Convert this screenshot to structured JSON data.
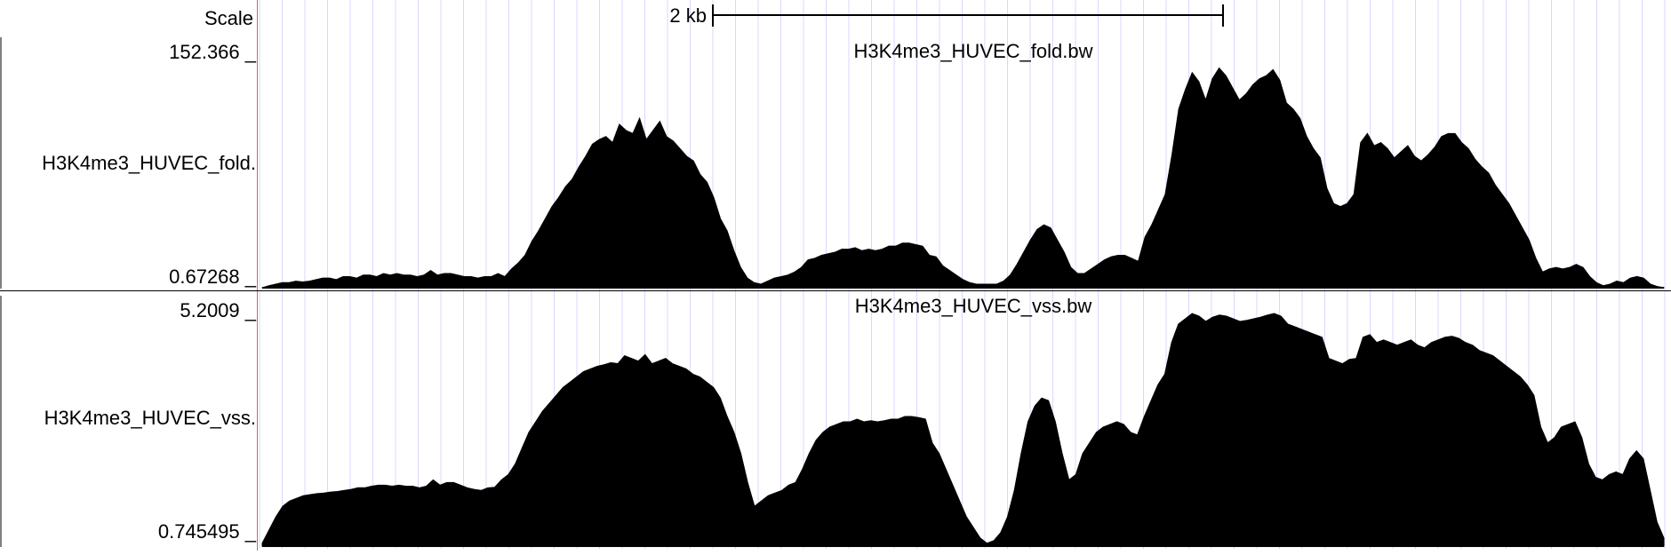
{
  "scale": {
    "label": "Scale",
    "text": "2 kb"
  },
  "colors": {
    "signal": "#000000",
    "gridline": "#d8d8ff",
    "left_border": "#e06060",
    "background": "#ffffff"
  },
  "chart_data": [
    {
      "type": "area",
      "title": "H3K4me3_HUVEC_fold.bw",
      "track_label": "H3K4me3_HUVEC_fold.",
      "ymax_label": "152.366 _",
      "ymin_label": "0.67268 _",
      "ylim": [
        0.67268,
        152.366
      ],
      "ylabel": "",
      "xlabel": "",
      "grid": true,
      "values": [
        0.7,
        2,
        3,
        4,
        4,
        5,
        4.5,
        5,
        6,
        7,
        7,
        6,
        8,
        8,
        7,
        9,
        9,
        8,
        10,
        9,
        10,
        9,
        9,
        8,
        9,
        12,
        9,
        10,
        10,
        9,
        8,
        8,
        7,
        8,
        8,
        10,
        8,
        13,
        17,
        22,
        31,
        38,
        46,
        54,
        60,
        67,
        72,
        80,
        87,
        95,
        98,
        100,
        96,
        108,
        104,
        102,
        112,
        98,
        104,
        110,
        100,
        97,
        92,
        87,
        84,
        75,
        70,
        60,
        46,
        38,
        25,
        14,
        7,
        4,
        3,
        5,
        7,
        8,
        9,
        11,
        14,
        19,
        20,
        22,
        23,
        24,
        26,
        26,
        27,
        25,
        26,
        25,
        26,
        28,
        28,
        30,
        30,
        29,
        28,
        22,
        21,
        15,
        12,
        9,
        6,
        4,
        3,
        3,
        3,
        3,
        5,
        9,
        16,
        24,
        32,
        39,
        42,
        40,
        32,
        24,
        14,
        10,
        10,
        13,
        16,
        19,
        21,
        22,
        22,
        20,
        18,
        34,
        42,
        52,
        62,
        88,
        118,
        131,
        142,
        136,
        124,
        138,
        145,
        140,
        132,
        124,
        128,
        134,
        138,
        140,
        144,
        137,
        122,
        118,
        112,
        100,
        92,
        86,
        66,
        56,
        54,
        56,
        62,
        96,
        102,
        94,
        96,
        92,
        86,
        90,
        94,
        87,
        84,
        88,
        93,
        100,
        102,
        102,
        96,
        92,
        85,
        80,
        76,
        68,
        62,
        56,
        48,
        40,
        32,
        20,
        11,
        13,
        14,
        13,
        14,
        16,
        14,
        8,
        4,
        2,
        3,
        5,
        4,
        7,
        8,
        7,
        3,
        1.5,
        0.7
      ]
    },
    {
      "type": "area",
      "title": "H3K4me3_HUVEC_vss.bw",
      "track_label": "H3K4me3_HUVEC_vss.",
      "ymax_label": "5.2009 _",
      "ymin_label": "0.745495 _",
      "ylim": [
        0.745495,
        5.2009
      ],
      "ylabel": "",
      "xlabel": "",
      "grid": true,
      "values": [
        0.8,
        1.05,
        1.3,
        1.5,
        1.6,
        1.65,
        1.7,
        1.72,
        1.74,
        1.75,
        1.77,
        1.78,
        1.8,
        1.82,
        1.85,
        1.85,
        1.88,
        1.9,
        1.9,
        1.88,
        1.9,
        1.88,
        1.88,
        1.85,
        1.88,
        2.0,
        1.9,
        1.95,
        1.95,
        1.9,
        1.85,
        1.82,
        1.8,
        1.85,
        1.86,
        2.0,
        2.1,
        2.3,
        2.6,
        2.9,
        3.1,
        3.3,
        3.45,
        3.6,
        3.75,
        3.85,
        3.95,
        4.05,
        4.1,
        4.15,
        4.18,
        4.22,
        4.2,
        4.35,
        4.3,
        4.25,
        4.37,
        4.2,
        4.25,
        4.3,
        4.2,
        4.15,
        4.1,
        4.0,
        3.95,
        3.85,
        3.75,
        3.55,
        3.2,
        2.9,
        2.5,
        1.95,
        1.5,
        1.6,
        1.7,
        1.75,
        1.8,
        1.9,
        1.95,
        2.2,
        2.5,
        2.75,
        2.9,
        3.0,
        3.05,
        3.1,
        3.1,
        3.15,
        3.1,
        3.12,
        3.1,
        3.12,
        3.15,
        3.15,
        3.2,
        3.2,
        3.18,
        3.15,
        2.7,
        2.5,
        2.2,
        1.9,
        1.6,
        1.3,
        1.1,
        0.9,
        0.8,
        0.85,
        1.0,
        1.3,
        1.8,
        2.5,
        3.1,
        3.4,
        3.55,
        3.5,
        3.1,
        2.5,
        2.0,
        2.1,
        2.5,
        2.7,
        2.9,
        3.0,
        3.05,
        3.1,
        3.05,
        2.9,
        2.85,
        3.2,
        3.5,
        3.8,
        4.0,
        4.6,
        4.95,
        5.05,
        5.15,
        5.1,
        5.0,
        5.08,
        5.12,
        5.1,
        5.05,
        5.0,
        5.02,
        5.05,
        5.08,
        5.12,
        5.15,
        5.1,
        4.95,
        4.9,
        4.85,
        4.8,
        4.75,
        4.7,
        4.3,
        4.25,
        4.2,
        4.28,
        4.3,
        4.7,
        4.75,
        4.6,
        4.65,
        4.6,
        4.55,
        4.6,
        4.65,
        4.55,
        4.5,
        4.6,
        4.65,
        4.7,
        4.72,
        4.68,
        4.6,
        4.55,
        4.45,
        4.4,
        4.35,
        4.25,
        4.15,
        4.05,
        3.95,
        3.8,
        3.6,
        3.0,
        2.7,
        2.8,
        3.0,
        3.05,
        3.1,
        2.8,
        2.3,
        2.05,
        2.0,
        2.1,
        2.15,
        2.1,
        2.4,
        2.55,
        2.4,
        1.8,
        1.2,
        0.9
      ]
    }
  ]
}
